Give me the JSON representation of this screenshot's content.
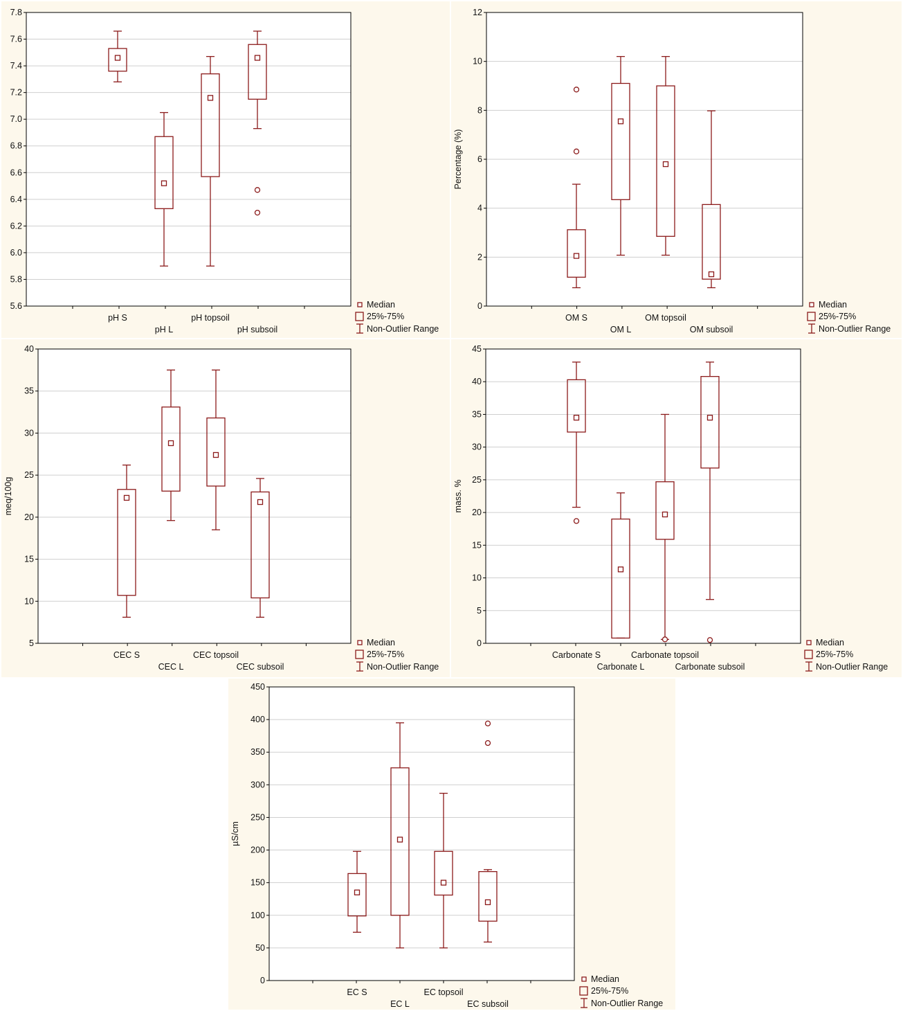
{
  "legend": {
    "median": "Median",
    "box": "25%-75%",
    "range": "Non-Outlier Range"
  },
  "colors": {
    "mark": "#8b1a1a",
    "grid": "#cfcfcf",
    "panel_bg": "#fdf8ec",
    "plot_bg": "#ffffff"
  },
  "chart_data": [
    {
      "type": "box",
      "ylabel": "",
      "ylim": [
        5.6,
        7.8
      ],
      "yticks": [
        5.6,
        5.8,
        6.0,
        6.2,
        6.4,
        6.6,
        6.8,
        7.0,
        7.2,
        7.4,
        7.6,
        7.8
      ],
      "ytick_labels": [
        "5.6",
        "5.8",
        "6.0",
        "6.2",
        "6.4",
        "6.6",
        "6.8",
        "7.0",
        "7.2",
        "7.4",
        "7.6",
        "7.8"
      ],
      "categories": [
        "pH S",
        "pH L",
        "pH topsoil",
        "pH subsoil"
      ],
      "series": [
        {
          "median": 7.46,
          "q1": 7.36,
          "q3": 7.53,
          "min": 7.28,
          "max": 7.66,
          "outliers": []
        },
        {
          "median": 6.52,
          "q1": 6.33,
          "q3": 6.87,
          "min": 5.9,
          "max": 7.05,
          "outliers": []
        },
        {
          "median": 7.16,
          "q1": 6.57,
          "q3": 7.34,
          "min": 5.9,
          "max": 7.47,
          "outliers": []
        },
        {
          "median": 7.46,
          "q1": 7.15,
          "q3": 7.56,
          "min": 6.93,
          "max": 7.66,
          "outliers": [
            6.47,
            6.3
          ]
        }
      ]
    },
    {
      "type": "box",
      "ylabel": "Percentage (%)",
      "ylim": [
        0,
        12
      ],
      "yticks": [
        0,
        2,
        4,
        6,
        8,
        10,
        12
      ],
      "ytick_labels": [
        "0",
        "2",
        "4",
        "6",
        "8",
        "10",
        "12"
      ],
      "categories": [
        "OM S",
        "OM L",
        "OM topsoil",
        "OM subsoil"
      ],
      "series": [
        {
          "median": 2.05,
          "q1": 1.18,
          "q3": 3.12,
          "min": 0.75,
          "max": 4.98,
          "outliers": [
            8.85,
            6.32
          ]
        },
        {
          "median": 7.55,
          "q1": 4.35,
          "q3": 9.1,
          "min": 2.08,
          "max": 10.2,
          "outliers": []
        },
        {
          "median": 5.8,
          "q1": 2.85,
          "q3": 9.0,
          "min": 2.08,
          "max": 10.2,
          "outliers": []
        },
        {
          "median": 1.3,
          "q1": 1.1,
          "q3": 4.15,
          "min": 0.75,
          "max": 7.98,
          "outliers": []
        }
      ]
    },
    {
      "type": "box",
      "ylabel": "meq/100g",
      "ylim": [
        5,
        40
      ],
      "yticks": [
        5,
        10,
        15,
        20,
        25,
        30,
        35,
        40
      ],
      "ytick_labels": [
        "5",
        "10",
        "15",
        "20",
        "25",
        "30",
        "35",
        "40"
      ],
      "categories": [
        "CEC S",
        "CEC L",
        "CEC topsoil",
        "CEC subsoil"
      ],
      "series": [
        {
          "median": 22.3,
          "q1": 10.7,
          "q3": 23.3,
          "min": 8.1,
          "max": 26.2,
          "outliers": []
        },
        {
          "median": 28.8,
          "q1": 23.1,
          "q3": 33.1,
          "min": 19.6,
          "max": 37.5,
          "outliers": []
        },
        {
          "median": 27.4,
          "q1": 23.7,
          "q3": 31.8,
          "min": 18.5,
          "max": 37.5,
          "outliers": []
        },
        {
          "median": 21.8,
          "q1": 10.4,
          "q3": 23.0,
          "min": 8.1,
          "max": 24.6,
          "outliers": []
        }
      ]
    },
    {
      "type": "box",
      "ylabel": "mass. %",
      "ylim": [
        0,
        45
      ],
      "yticks": [
        0,
        5,
        10,
        15,
        20,
        25,
        30,
        35,
        40,
        45
      ],
      "ytick_labels": [
        "0",
        "5",
        "10",
        "15",
        "20",
        "25",
        "30",
        "35",
        "40",
        "45"
      ],
      "categories": [
        "Carbonate S",
        "Carbonate L",
        "Carbonate topsoil",
        "Carbonate subsoil"
      ],
      "series": [
        {
          "median": 34.5,
          "q1": 32.3,
          "q3": 40.3,
          "min": 20.8,
          "max": 43.0,
          "outliers": [
            18.7
          ]
        },
        {
          "median": 11.3,
          "q1": 0.8,
          "q3": 19.0,
          "min": 0.8,
          "max": 23.0,
          "outliers": []
        },
        {
          "median": 19.7,
          "q1": 15.9,
          "q3": 24.7,
          "min": 0.6,
          "max": 35.0,
          "outliers": [
            0.6
          ]
        },
        {
          "median": 34.5,
          "q1": 26.8,
          "q3": 40.8,
          "min": 6.7,
          "max": 43.0,
          "outliers": [
            0.5
          ]
        }
      ]
    },
    {
      "type": "box",
      "ylabel": "µS/cm",
      "ylim": [
        0,
        450
      ],
      "yticks": [
        0,
        50,
        100,
        150,
        200,
        250,
        300,
        350,
        400,
        450
      ],
      "ytick_labels": [
        "0",
        "50",
        "100",
        "150",
        "200",
        "250",
        "300",
        "350",
        "400",
        "450"
      ],
      "categories": [
        "EC S",
        "EC L",
        "EC topsoil",
        "EC subsoil"
      ],
      "series": [
        {
          "median": 135,
          "q1": 99,
          "q3": 164,
          "min": 74,
          "max": 198,
          "outliers": []
        },
        {
          "median": 216,
          "q1": 100,
          "q3": 326,
          "min": 50,
          "max": 395,
          "outliers": []
        },
        {
          "median": 150,
          "q1": 131,
          "q3": 198,
          "min": 50,
          "max": 287,
          "outliers": []
        },
        {
          "median": 120,
          "q1": 91,
          "q3": 167,
          "min": 59,
          "max": 170,
          "outliers": [
            394,
            364
          ]
        }
      ]
    }
  ]
}
